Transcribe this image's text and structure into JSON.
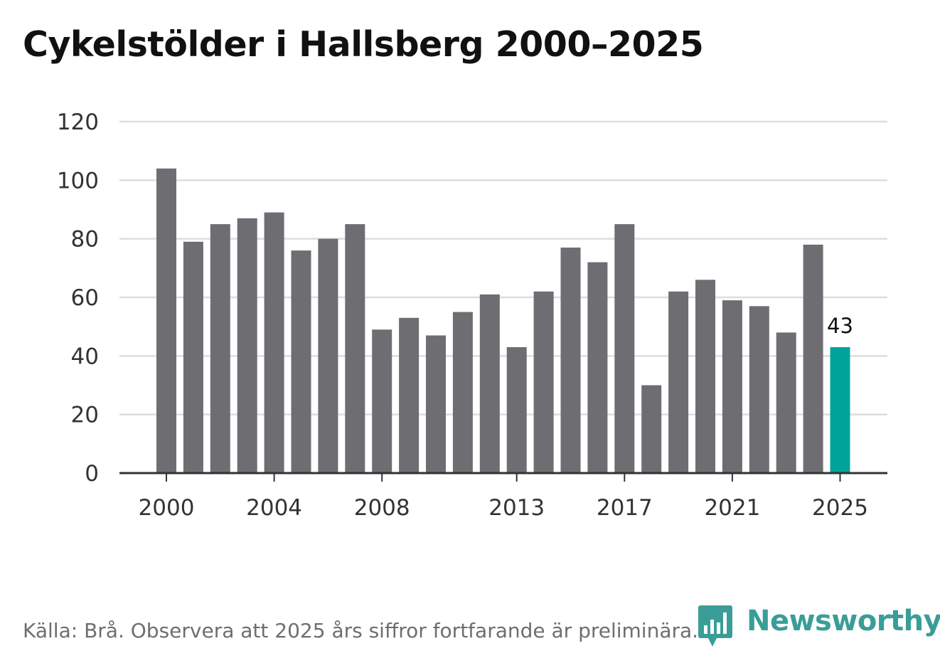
{
  "title": "Cykelstölder i Hallsberg 2000–2025",
  "source": "Källa: Brå. Observera att 2025 års siffror fortfarande är preliminära.",
  "brand": {
    "name": "Newsworthy",
    "icon": "newsworthy-chart-logo-icon",
    "color": "#3a9d97"
  },
  "colors": {
    "bar": "#6e6d72",
    "highlight": "#00a39a",
    "grid": "#dddddd",
    "axis": "#333333",
    "text": "#333333"
  },
  "chart_data": {
    "type": "bar",
    "title": "Cykelstölder i Hallsberg 2000–2025",
    "xlabel": "",
    "ylabel": "",
    "ylim": [
      0,
      120
    ],
    "yticks": [
      0,
      20,
      40,
      60,
      80,
      100,
      120
    ],
    "categories": [
      "2000",
      "2001",
      "2002",
      "2003",
      "2004",
      "2005",
      "2006",
      "2007",
      "2008",
      "2009",
      "2010",
      "2011",
      "2012",
      "2013",
      "2014",
      "2015",
      "2016",
      "2017",
      "2018",
      "2019",
      "2020",
      "2021",
      "2022",
      "2023",
      "2024",
      "2025"
    ],
    "xtick_labels": [
      "2000",
      "2004",
      "2008",
      "2013",
      "2017",
      "2021",
      "2025"
    ],
    "values": [
      104,
      79,
      85,
      87,
      89,
      76,
      80,
      85,
      49,
      53,
      47,
      55,
      61,
      43,
      62,
      77,
      72,
      85,
      30,
      62,
      66,
      59,
      57,
      48,
      78,
      43
    ],
    "highlight": {
      "category": "2025",
      "value": 43,
      "label": "43"
    },
    "grid": true
  }
}
